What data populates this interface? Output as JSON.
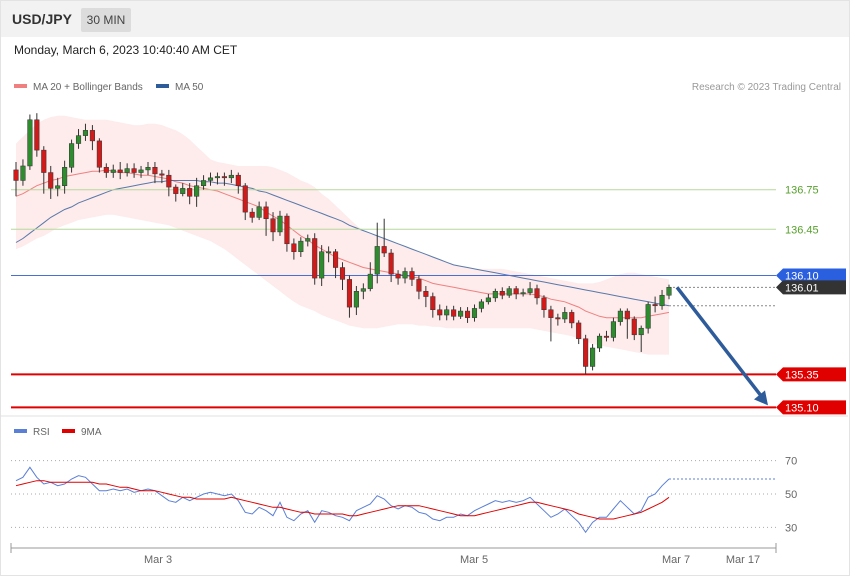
{
  "header": {
    "symbol": "USD/JPY",
    "timeframe": "30 MIN",
    "datetime": "Monday, March 6, 2023 10:40:40 AM CET"
  },
  "legend_main": [
    {
      "label": "MA 20 + Bollinger Bands",
      "color": "#f08080"
    },
    {
      "label": "MA 50",
      "color": "#2e5b9a"
    }
  ],
  "copyright": "Research © 2023 Trading Central",
  "legend_rsi": [
    {
      "label": "RSI",
      "color": "#5b7fd6"
    },
    {
      "label": "9MA",
      "color": "#e00000"
    }
  ],
  "chart_data": {
    "type": "candlestick",
    "price_levels": [
      {
        "value": 136.75,
        "label": "136.75",
        "style": "green-line"
      },
      {
        "value": 136.45,
        "label": "136.45",
        "style": "green-line"
      },
      {
        "value": 136.1,
        "label": "136.10",
        "style": "blue-line-tag"
      },
      {
        "value": 136.01,
        "label": "136.01",
        "style": "dark-tag"
      },
      {
        "value": 135.35,
        "label": "135.35",
        "style": "red-line-tag"
      },
      {
        "value": 135.1,
        "label": "135.10",
        "style": "red-line-tag"
      }
    ],
    "ylim": [
      135.08,
      137.43
    ],
    "candles": [
      [
        136.9,
        136.82,
        136.7,
        136.96
      ],
      [
        136.82,
        136.93,
        136.78,
        136.98
      ],
      [
        136.93,
        137.28,
        136.9,
        137.32
      ],
      [
        137.28,
        137.05,
        137.0,
        137.33
      ],
      [
        137.05,
        136.88,
        136.72,
        137.08
      ],
      [
        136.88,
        136.76,
        136.68,
        136.93
      ],
      [
        136.76,
        136.78,
        136.7,
        136.84
      ],
      [
        136.78,
        136.92,
        136.72,
        136.97
      ],
      [
        136.92,
        137.1,
        136.88,
        137.13
      ],
      [
        137.1,
        137.16,
        137.06,
        137.21
      ],
      [
        137.16,
        137.2,
        137.12,
        137.25
      ],
      [
        137.2,
        137.12,
        137.05,
        137.24
      ],
      [
        137.12,
        136.92,
        136.88,
        137.14
      ],
      [
        136.92,
        136.88,
        136.84,
        136.95
      ],
      [
        136.88,
        136.9,
        136.84,
        136.94
      ],
      [
        136.9,
        136.88,
        136.83,
        136.96
      ],
      [
        136.88,
        136.91,
        136.85,
        136.95
      ],
      [
        136.91,
        136.88,
        136.84,
        136.95
      ],
      [
        136.88,
        136.9,
        136.84,
        136.93
      ],
      [
        136.9,
        136.92,
        136.86,
        136.96
      ],
      [
        136.92,
        136.87,
        136.8,
        136.96
      ],
      [
        136.87,
        136.86,
        136.8,
        136.9
      ],
      [
        136.86,
        136.77,
        136.7,
        136.9
      ],
      [
        136.77,
        136.72,
        136.66,
        136.79
      ],
      [
        136.72,
        136.76,
        136.7,
        136.8
      ],
      [
        136.76,
        136.7,
        136.64,
        136.8
      ],
      [
        136.7,
        136.78,
        136.62,
        136.84
      ],
      [
        136.78,
        136.82,
        136.75,
        136.86
      ],
      [
        136.82,
        136.84,
        136.78,
        136.88
      ],
      [
        136.84,
        136.85,
        136.79,
        136.88
      ],
      [
        136.85,
        136.84,
        136.78,
        136.88
      ],
      [
        136.84,
        136.86,
        136.8,
        136.9
      ],
      [
        136.86,
        136.78,
        136.72,
        136.88
      ],
      [
        136.78,
        136.58,
        136.52,
        136.8
      ],
      [
        136.58,
        136.54,
        136.5,
        136.61
      ],
      [
        136.54,
        136.62,
        136.52,
        136.66
      ],
      [
        136.62,
        136.53,
        136.4,
        136.66
      ],
      [
        136.53,
        136.43,
        136.36,
        136.58
      ],
      [
        136.43,
        136.55,
        136.4,
        136.59
      ],
      [
        136.55,
        136.34,
        136.28,
        136.57
      ],
      [
        136.34,
        136.28,
        136.22,
        136.38
      ],
      [
        136.28,
        136.36,
        136.24,
        136.39
      ],
      [
        136.36,
        136.38,
        136.32,
        136.41
      ],
      [
        136.38,
        136.08,
        136.03,
        136.42
      ],
      [
        136.08,
        136.28,
        136.02,
        136.33
      ],
      [
        136.28,
        136.28,
        136.2,
        136.32
      ],
      [
        136.28,
        136.16,
        136.08,
        136.3
      ],
      [
        136.16,
        136.07,
        135.99,
        136.2
      ],
      [
        136.07,
        135.86,
        135.78,
        136.1
      ],
      [
        135.86,
        135.98,
        135.8,
        136.02
      ],
      [
        135.98,
        136.0,
        135.92,
        136.04
      ],
      [
        136.0,
        136.11,
        135.98,
        136.2
      ],
      [
        136.11,
        136.32,
        136.04,
        136.5
      ],
      [
        136.32,
        136.27,
        136.24,
        136.53
      ],
      [
        136.27,
        136.11,
        136.05,
        136.3
      ],
      [
        136.11,
        136.08,
        136.03,
        136.14
      ],
      [
        136.08,
        136.13,
        136.04,
        136.16
      ],
      [
        136.13,
        136.07,
        136.02,
        136.16
      ],
      [
        136.07,
        135.98,
        135.92,
        136.1
      ],
      [
        135.98,
        135.94,
        135.86,
        136.02
      ],
      [
        135.94,
        135.84,
        135.78,
        135.97
      ],
      [
        135.84,
        135.8,
        135.76,
        135.88
      ],
      [
        135.8,
        135.84,
        135.76,
        135.87
      ],
      [
        135.84,
        135.79,
        135.76,
        135.87
      ],
      [
        135.79,
        135.83,
        135.77,
        135.86
      ],
      [
        135.83,
        135.78,
        135.74,
        135.86
      ],
      [
        135.78,
        135.85,
        135.75,
        135.88
      ],
      [
        135.85,
        135.9,
        135.82,
        135.92
      ],
      [
        135.9,
        135.93,
        135.88,
        135.96
      ],
      [
        135.93,
        135.98,
        135.9,
        136.0
      ],
      [
        135.98,
        135.95,
        135.92,
        136.01
      ],
      [
        135.95,
        136.0,
        135.93,
        136.02
      ],
      [
        136.0,
        135.96,
        135.92,
        136.02
      ],
      [
        135.96,
        135.97,
        135.94,
        136.0
      ],
      [
        135.97,
        136.0,
        135.95,
        136.05
      ],
      [
        136.0,
        135.93,
        135.88,
        136.03
      ],
      [
        135.93,
        135.84,
        135.78,
        135.95
      ],
      [
        135.84,
        135.78,
        135.6,
        135.87
      ],
      [
        135.78,
        135.77,
        135.72,
        135.81
      ],
      [
        135.77,
        135.82,
        135.74,
        135.86
      ],
      [
        135.82,
        135.74,
        135.7,
        135.84
      ],
      [
        135.74,
        135.62,
        135.58,
        135.76
      ],
      [
        135.62,
        135.41,
        135.35,
        135.65
      ],
      [
        135.41,
        135.55,
        135.38,
        135.58
      ],
      [
        135.55,
        135.64,
        135.52,
        135.66
      ],
      [
        135.64,
        135.63,
        135.6,
        135.68
      ],
      [
        135.63,
        135.75,
        135.6,
        135.78
      ],
      [
        135.75,
        135.83,
        135.72,
        135.85
      ],
      [
        135.83,
        135.77,
        135.62,
        135.85
      ],
      [
        135.77,
        135.65,
        135.61,
        135.79
      ],
      [
        135.65,
        135.7,
        135.52,
        135.72
      ],
      [
        135.7,
        135.88,
        135.66,
        135.9
      ],
      [
        135.88,
        135.87,
        135.82,
        135.94
      ],
      [
        135.87,
        135.95,
        135.84,
        135.99
      ],
      [
        135.95,
        136.01,
        135.92,
        136.03
      ]
    ],
    "ma20": [
      136.7,
      136.72,
      136.75,
      136.78,
      136.8,
      136.82,
      136.83,
      136.85,
      136.86,
      136.87,
      136.88,
      136.89,
      136.89,
      136.9,
      136.89,
      136.88,
      136.88,
      136.87,
      136.86,
      136.86,
      136.85,
      136.84,
      136.83,
      136.81,
      136.8,
      136.78,
      136.77,
      136.76,
      136.75,
      136.74,
      136.72,
      136.7,
      136.68,
      136.66,
      136.64,
      136.62,
      136.58,
      136.55,
      136.52,
      136.48,
      136.44,
      136.4,
      136.37,
      136.33,
      136.3,
      136.27,
      136.24,
      136.22,
      136.2,
      136.18,
      136.16,
      136.15,
      136.14,
      136.13,
      136.12,
      136.11,
      136.1,
      136.09,
      136.08,
      136.06,
      136.04,
      136.03,
      136.02,
      136.01,
      136.0,
      135.99,
      135.98,
      135.97,
      135.96,
      135.96,
      135.96,
      135.96,
      135.96,
      135.96,
      135.96,
      135.95,
      135.94,
      135.92,
      135.91,
      135.9,
      135.88,
      135.86,
      135.83,
      135.81,
      135.79,
      135.78,
      135.78,
      135.78,
      135.78,
      135.78,
      135.78,
      135.79,
      135.8,
      135.81,
      135.82
    ],
    "ma50": [
      136.35,
      136.38,
      136.42,
      136.46,
      136.5,
      136.54,
      136.57,
      136.6,
      136.62,
      136.65,
      136.67,
      136.69,
      136.71,
      136.73,
      136.75,
      136.76,
      136.77,
      136.78,
      136.79,
      136.8,
      136.81,
      136.81,
      136.82,
      136.82,
      136.82,
      136.82,
      136.82,
      136.81,
      136.81,
      136.8,
      136.8,
      136.79,
      136.78,
      136.77,
      136.76,
      136.74,
      136.73,
      136.71,
      136.69,
      136.67,
      136.65,
      136.63,
      136.61,
      136.59,
      136.57,
      136.55,
      136.53,
      136.51,
      136.48,
      136.46,
      136.44,
      136.42,
      136.4,
      136.38,
      136.36,
      136.34,
      136.32,
      136.3,
      136.28,
      136.26,
      136.24,
      136.22,
      136.2,
      136.18,
      136.17,
      136.16,
      136.15,
      136.14,
      136.13,
      136.12,
      136.11,
      136.1,
      136.09,
      136.08,
      136.07,
      136.06,
      136.05,
      136.04,
      136.03,
      136.02,
      136.01,
      136.0,
      135.99,
      135.98,
      135.97,
      135.96,
      135.95,
      135.94,
      135.93,
      135.92,
      135.91,
      135.9,
      135.89,
      135.88,
      135.87
    ],
    "bb_upper": [
      137.1,
      137.15,
      137.2,
      137.25,
      137.28,
      137.3,
      137.31,
      137.31,
      137.3,
      137.29,
      137.28,
      137.28,
      137.28,
      137.28,
      137.27,
      137.26,
      137.25,
      137.24,
      137.24,
      137.25,
      137.25,
      137.24,
      137.22,
      137.2,
      137.17,
      137.13,
      137.08,
      137.03,
      136.98,
      136.96,
      136.95,
      136.94,
      136.93,
      136.93,
      136.93,
      136.93,
      136.93,
      136.92,
      136.9,
      136.88,
      136.85,
      136.82,
      136.8,
      136.77,
      136.72,
      136.68,
      136.63,
      136.58,
      136.53,
      136.48,
      136.44,
      136.42,
      136.4,
      136.38,
      136.36,
      136.34,
      136.32,
      136.3,
      136.28,
      136.26,
      136.24,
      136.22,
      136.2,
      136.18,
      136.17,
      136.16,
      136.15,
      136.15,
      136.15,
      136.15,
      136.15,
      136.14,
      136.13,
      136.12,
      136.11,
      136.1,
      136.09,
      136.08,
      136.07,
      136.06,
      136.05,
      136.04,
      136.04,
      136.04,
      136.05,
      136.07,
      136.09,
      136.11,
      136.12,
      136.12,
      136.11,
      136.1,
      136.09,
      136.08,
      136.07
    ],
    "bb_lower": [
      136.3,
      136.32,
      136.35,
      136.38,
      136.4,
      136.43,
      136.46,
      136.48,
      136.5,
      136.52,
      136.53,
      136.54,
      136.55,
      136.56,
      136.56,
      136.55,
      136.54,
      136.53,
      136.52,
      136.51,
      136.5,
      136.49,
      136.48,
      136.46,
      136.44,
      136.42,
      136.4,
      136.38,
      136.36,
      136.33,
      136.3,
      136.26,
      136.22,
      136.18,
      136.14,
      136.1,
      136.06,
      136.02,
      135.98,
      135.94,
      135.9,
      135.87,
      135.85,
      135.83,
      135.8,
      135.78,
      135.76,
      135.74,
      135.72,
      135.71,
      135.7,
      135.7,
      135.7,
      135.71,
      135.72,
      135.73,
      135.73,
      135.73,
      135.72,
      135.72,
      135.71,
      135.71,
      135.7,
      135.7,
      135.7,
      135.7,
      135.7,
      135.7,
      135.7,
      135.7,
      135.7,
      135.7,
      135.7,
      135.7,
      135.7,
      135.69,
      135.68,
      135.67,
      135.66,
      135.65,
      135.64,
      135.62,
      135.6,
      135.58,
      135.57,
      135.56,
      135.55,
      135.54,
      135.53,
      135.52,
      135.51,
      135.5,
      135.5,
      135.5,
      135.5
    ],
    "forecast_arrow": {
      "from": 136.01,
      "to": 135.1,
      "direction": "down"
    },
    "x_tick_labels": [
      "Mar 3",
      "Mar 5",
      "Mar 7",
      "Mar 17"
    ],
    "rsi": {
      "ylim": [
        20,
        80
      ],
      "levels": [
        70,
        50,
        30
      ],
      "rsi_values": [
        58,
        60,
        66,
        60,
        56,
        57,
        55,
        56,
        59,
        61,
        60,
        56,
        52,
        52,
        53,
        52,
        53,
        51,
        52,
        53,
        52,
        49,
        46,
        45,
        48,
        46,
        48,
        50,
        51,
        50,
        49,
        50,
        46,
        39,
        38,
        42,
        40,
        37,
        45,
        36,
        34,
        38,
        40,
        33,
        40,
        39,
        37,
        36,
        34,
        40,
        42,
        44,
        49,
        47,
        43,
        41,
        43,
        42,
        39,
        38,
        35,
        34,
        36,
        36,
        38,
        37,
        40,
        42,
        44,
        46,
        45,
        46,
        45,
        46,
        48,
        44,
        40,
        36,
        38,
        41,
        37,
        33,
        27,
        33,
        36,
        36,
        41,
        46,
        42,
        38,
        40,
        48,
        50,
        55,
        59
      ],
      "ma9_values": [
        55,
        56,
        57,
        58,
        58,
        57,
        57,
        57,
        57,
        57,
        57,
        57,
        56,
        56,
        55,
        54,
        54,
        53,
        52,
        52,
        52,
        51,
        50,
        49,
        48,
        48,
        47,
        47,
        47,
        47,
        47,
        48,
        47,
        46,
        45,
        44,
        43,
        42,
        42,
        41,
        40,
        39,
        39,
        38,
        38,
        38,
        38,
        38,
        37,
        37,
        38,
        39,
        40,
        41,
        42,
        43,
        43,
        43,
        43,
        42,
        41,
        40,
        39,
        38,
        37,
        37,
        37,
        38,
        39,
        40,
        41,
        42,
        43,
        44,
        45,
        45,
        44,
        43,
        42,
        41,
        40,
        38,
        37,
        36,
        35,
        35,
        35,
        36,
        37,
        38,
        39,
        41,
        43,
        45,
        48
      ]
    }
  }
}
